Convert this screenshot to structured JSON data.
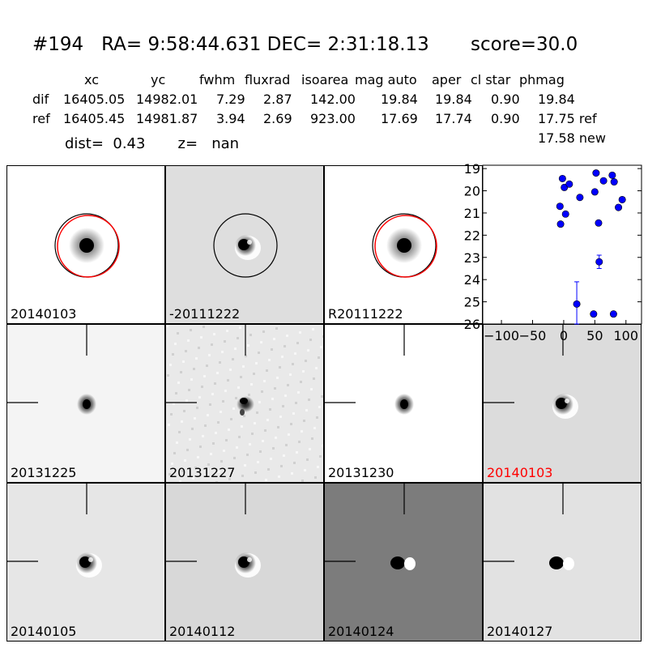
{
  "header": {
    "title": "#194   RA= 9:58:44.631 DEC= 2:31:18.13       score=30.0",
    "columns": [
      "xc",
      "yc",
      "fwhm",
      "fluxrad",
      "isoarea",
      "mag auto",
      "aper",
      "cl star",
      "phmag"
    ],
    "rows": [
      {
        "label": "dif",
        "values": [
          "16405.05",
          "14982.01",
          "7.29",
          "2.87",
          "142.00",
          "19.84",
          "19.84",
          "0.90",
          "19.84"
        ]
      },
      {
        "label": "ref",
        "values": [
          "16405.45",
          "14981.87",
          "3.94",
          "2.69",
          "923.00",
          "17.69",
          "17.74",
          "0.90",
          "17.75 ref"
        ]
      }
    ],
    "new_mag": "17.58 new",
    "dist_line": "dist=  0.43       z=   nan"
  },
  "panels": [
    {
      "label": "20140103",
      "bg": "#ffffff",
      "kind": "stamp",
      "circle": true,
      "red_circle": true,
      "red_label": false
    },
    {
      "label": "-20111222",
      "bg": "#dedede",
      "kind": "diff",
      "circle": true,
      "red_circle": false,
      "red_label": false
    },
    {
      "label": "R20111222",
      "bg": "#ffffff",
      "kind": "stamp",
      "circle": true,
      "red_circle": true,
      "red_label": false
    },
    {
      "label": "20131225",
      "bg": "#f4f4f4",
      "kind": "small",
      "cross": true,
      "red_label": false
    },
    {
      "label": "20131227",
      "bg": "#e9e9e9",
      "kind": "noisy",
      "cross": true,
      "red_label": false
    },
    {
      "label": "20131230",
      "bg": "#ffffff",
      "kind": "small",
      "cross": true,
      "red_label": false
    },
    {
      "label": "20140103",
      "bg": "#dcdcdc",
      "kind": "diff",
      "cross": true,
      "red_label": true
    },
    {
      "label": "20140105",
      "bg": "#e6e6e6",
      "kind": "diff",
      "cross": true,
      "red_label": false
    },
    {
      "label": "20140112",
      "bg": "#d8d8d8",
      "kind": "diff",
      "cross": true,
      "red_label": false
    },
    {
      "label": "20140124",
      "bg": "#7c7c7c",
      "kind": "dipole",
      "cross": true,
      "red_label": false
    },
    {
      "label": "20140127",
      "bg": "#e2e2e2",
      "kind": "dipole",
      "cross": true,
      "red_label": false
    }
  ],
  "colors": {
    "point": "#0000ff",
    "red": "#ff0000"
  },
  "chart_data": {
    "type": "scatter",
    "xlim": [
      -130,
      125
    ],
    "ylim": [
      26,
      18.85
    ],
    "y_inverted": true,
    "xticks": [
      -100,
      -50,
      0,
      50,
      100
    ],
    "xtick_labels": [
      "−100",
      "−50",
      "0",
      "50",
      "100"
    ],
    "yticks": [
      19,
      20,
      21,
      22,
      23,
      24,
      25,
      26
    ],
    "yticks_labels": [
      "19",
      "20",
      "21",
      "22",
      "23",
      "24",
      "25",
      "26"
    ],
    "grid": false,
    "points": [
      {
        "x": -2,
        "y": 19.45
      },
      {
        "x": 1,
        "y": 19.85
      },
      {
        "x": 9,
        "y": 19.7
      },
      {
        "x": -6,
        "y": 20.7
      },
      {
        "x": 3,
        "y": 21.05
      },
      {
        "x": -5,
        "y": 21.5
      },
      {
        "x": 26,
        "y": 20.3
      },
      {
        "x": 52,
        "y": 19.2
      },
      {
        "x": 50,
        "y": 20.05
      },
      {
        "x": 64,
        "y": 19.55
      },
      {
        "x": 78,
        "y": 19.3
      },
      {
        "x": 81,
        "y": 19.6
      },
      {
        "x": 94,
        "y": 20.4
      },
      {
        "x": 88,
        "y": 20.75
      },
      {
        "x": 56,
        "y": 21.45
      },
      {
        "x": 57,
        "y": 23.2,
        "err": 0.3
      },
      {
        "x": 21,
        "y": 25.1,
        "err": 1.0
      },
      {
        "x": 48,
        "y": 25.55,
        "err": 0.1
      },
      {
        "x": 80,
        "y": 25.55,
        "err": 0.1
      }
    ]
  }
}
